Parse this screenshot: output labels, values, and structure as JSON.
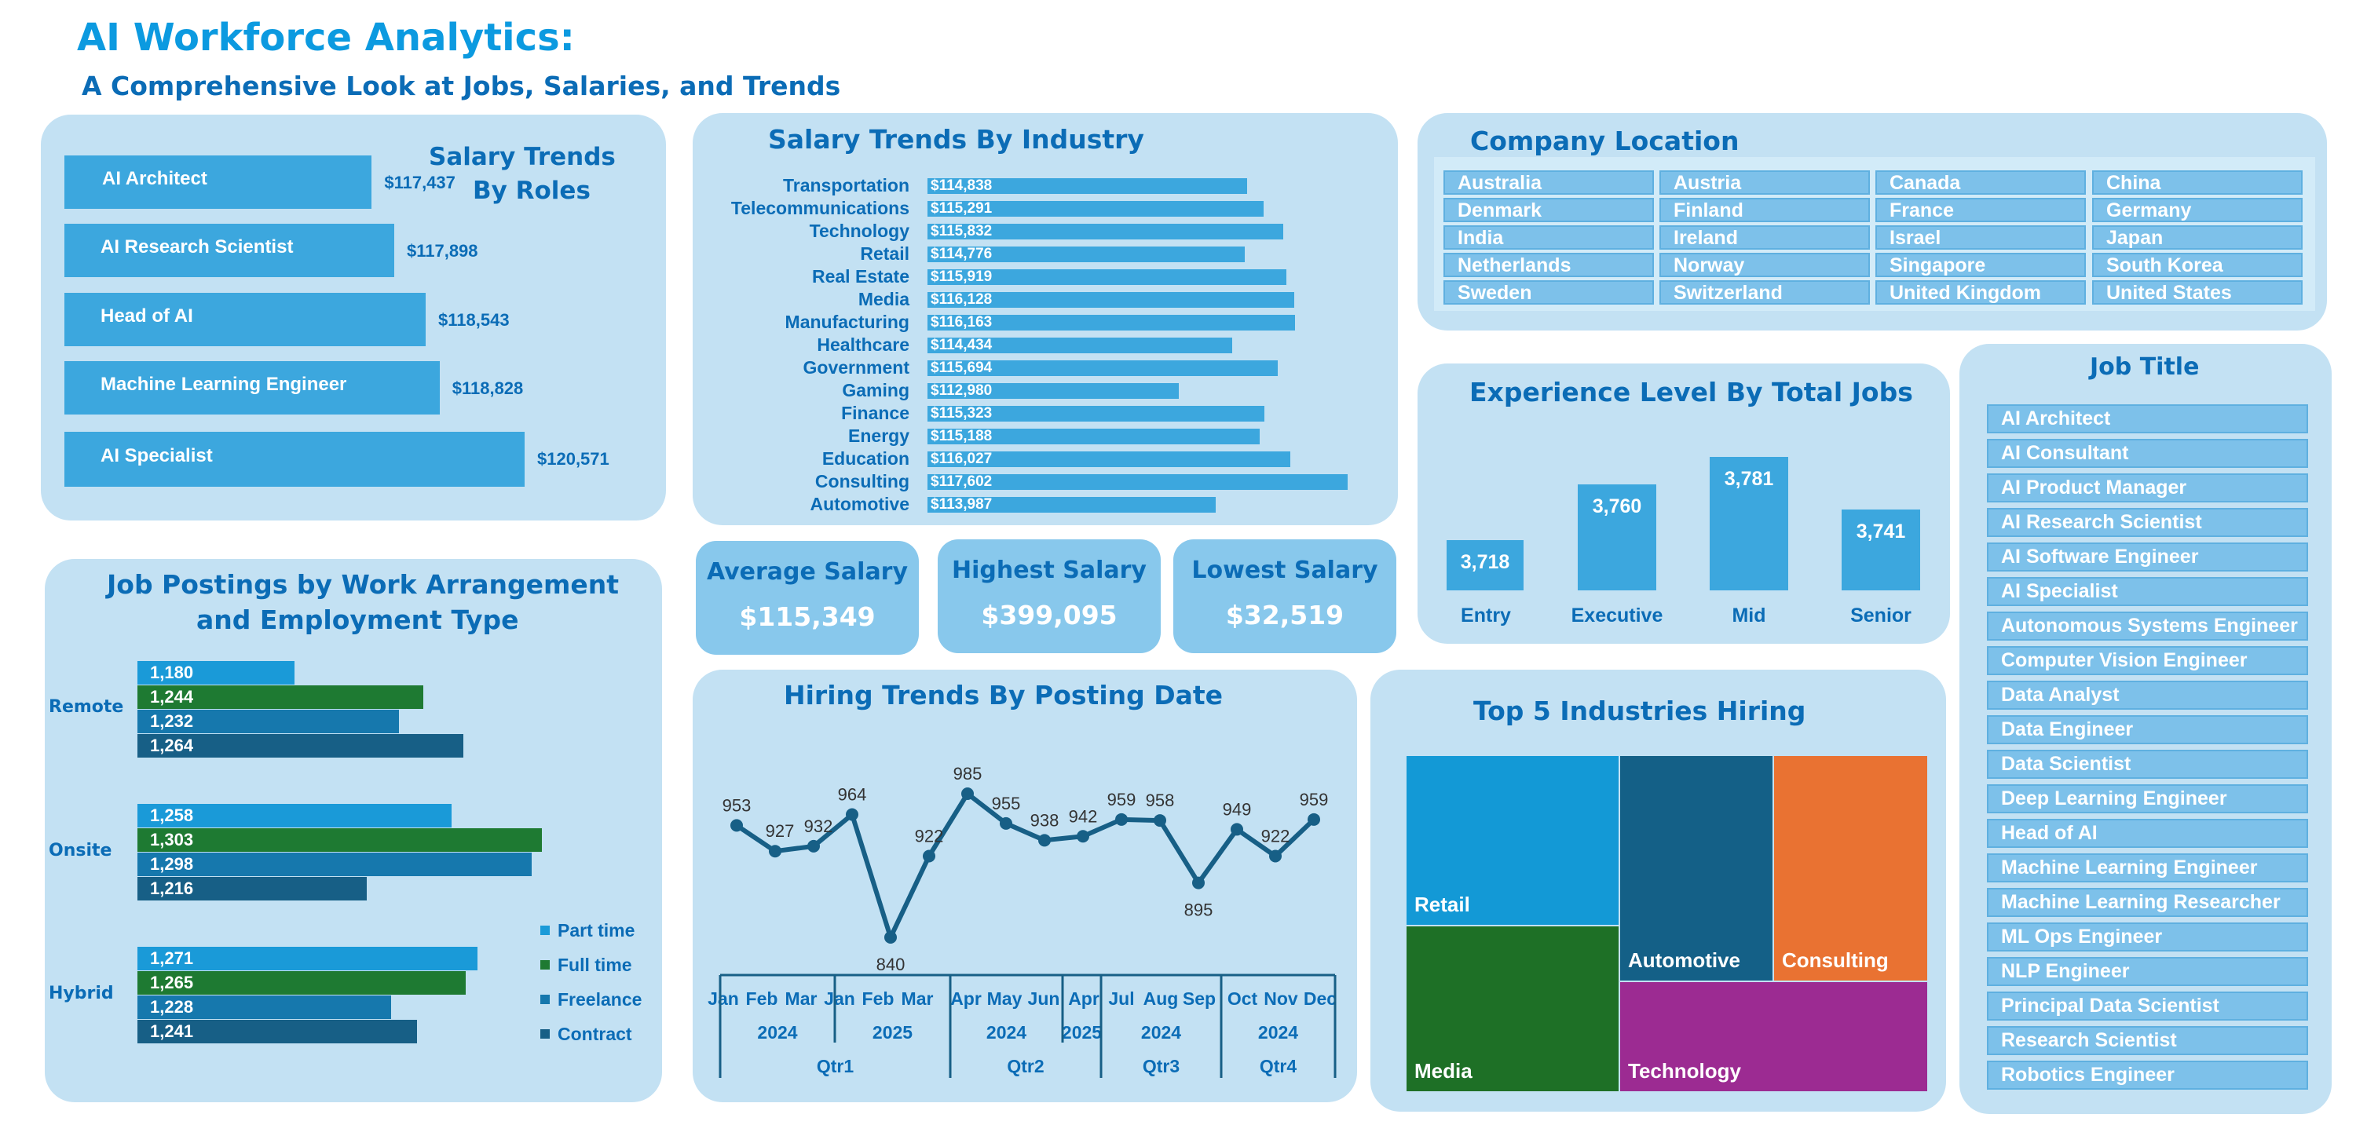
{
  "header": {
    "title": "AI Workforce Analytics:",
    "subtitle": "A Comprehensive Look at Jobs, Salaries, and Trends"
  },
  "salary_by_roles": {
    "title_line1": "Salary Trends",
    "title_line2": "By Roles",
    "items": [
      {
        "label": "AI Architect",
        "value": "$117,437"
      },
      {
        "label": "AI Research Scientist",
        "value": "$117,898"
      },
      {
        "label": "Head of AI",
        "value": "$118,543"
      },
      {
        "label": "Machine Learning Engineer",
        "value": "$118,828"
      },
      {
        "label": "AI Specialist",
        "value": "$120,571"
      }
    ]
  },
  "salary_by_industry": {
    "title": "Salary Trends By Industry",
    "items": [
      {
        "label": "Transportation",
        "value": "$114,838"
      },
      {
        "label": "Telecommunications",
        "value": "$115,291"
      },
      {
        "label": "Technology",
        "value": "$115,832"
      },
      {
        "label": "Retail",
        "value": "$114,776"
      },
      {
        "label": "Real Estate",
        "value": "$115,919"
      },
      {
        "label": "Media",
        "value": "$116,128"
      },
      {
        "label": "Manufacturing",
        "value": "$116,163"
      },
      {
        "label": "Healthcare",
        "value": "$114,434"
      },
      {
        "label": "Government",
        "value": "$115,694"
      },
      {
        "label": "Gaming",
        "value": "$112,980"
      },
      {
        "label": "Finance",
        "value": "$115,323"
      },
      {
        "label": "Energy",
        "value": "$115,188"
      },
      {
        "label": "Education",
        "value": "$116,027"
      },
      {
        "label": "Consulting",
        "value": "$117,602"
      },
      {
        "label": "Automotive",
        "value": "$113,987"
      }
    ]
  },
  "company_location": {
    "title": "Company Location",
    "locations": [
      "Australia",
      "Austria",
      "Canada",
      "China",
      "Denmark",
      "Finland",
      "France",
      "Germany",
      "India",
      "Ireland",
      "Israel",
      "Japan",
      "Netherlands",
      "Norway",
      "Singapore",
      "South Korea",
      "Sweden",
      "Switzerland",
      "United Kingdom",
      "United States"
    ]
  },
  "kpis": {
    "average": {
      "label": "Average Salary",
      "value": "$115,349"
    },
    "highest": {
      "label": "Highest Salary",
      "value": "$399,095"
    },
    "lowest": {
      "label": "Lowest Salary",
      "value": "$32,519"
    }
  },
  "experience": {
    "title": "Experience Level By Total Jobs",
    "items": [
      {
        "label": "Entry",
        "value": 3718,
        "display": "3,718"
      },
      {
        "label": "Executive",
        "value": 3760,
        "display": "3,760"
      },
      {
        "label": "Mid",
        "value": 3781,
        "display": "3,781"
      },
      {
        "label": "Senior",
        "value": 3741,
        "display": "3,741"
      }
    ]
  },
  "job_title": {
    "title": "Job Title",
    "items": [
      "AI Architect",
      "AI Consultant",
      "AI Product Manager",
      "AI Research Scientist",
      "AI Software Engineer",
      "AI Specialist",
      "Autonomous Systems Engineer",
      "Computer Vision Engineer",
      "Data Analyst",
      "Data Engineer",
      "Data Scientist",
      "Deep Learning Engineer",
      "Head of AI",
      "Machine Learning Engineer",
      "Machine Learning Researcher",
      "ML Ops Engineer",
      "NLP Engineer",
      "Principal Data Scientist",
      "Research Scientist",
      "Robotics Engineer"
    ]
  },
  "work_arrangement": {
    "title_line1": "Job Postings by Work Arrangement",
    "title_line2": "and Employment Type",
    "groups": [
      {
        "label": "Remote",
        "values": [
          1180,
          1244,
          1232,
          1264
        ],
        "display": [
          "1,180",
          "1,244",
          "1,232",
          "1,264"
        ]
      },
      {
        "label": "Onsite",
        "values": [
          1258,
          1303,
          1298,
          1216
        ],
        "display": [
          "1,258",
          "1,303",
          "1,298",
          "1,216"
        ]
      },
      {
        "label": "Hybrid",
        "values": [
          1271,
          1265,
          1228,
          1241
        ],
        "display": [
          "1,271",
          "1,265",
          "1,228",
          "1,241"
        ]
      }
    ],
    "legend": [
      {
        "label": "Part time",
        "color": "#1a9ad8"
      },
      {
        "label": "Full time",
        "color": "#1e7a32"
      },
      {
        "label": "Freelance",
        "color": "#1678ad"
      },
      {
        "label": "Contract",
        "color": "#175f86"
      }
    ]
  },
  "hiring_trends": {
    "title": "Hiring Trends By Posting Date",
    "points": [
      953,
      927,
      932,
      964,
      840,
      922,
      985,
      955,
      938,
      942,
      959,
      958,
      895,
      949,
      922,
      959
    ],
    "months": [
      "Jan",
      "Feb",
      "Mar",
      "Jan",
      "Feb",
      "Mar",
      "Apr",
      "May",
      "Jun",
      "Apr",
      "Jul",
      "Aug",
      "Sep",
      "Oct",
      "Nov",
      "Dec"
    ],
    "years": [
      "2024",
      "2025",
      "2024",
      "2025",
      "2024",
      "2024"
    ],
    "quarters": [
      "Qtr1",
      "Qtr2",
      "Qtr3",
      "Qtr4"
    ]
  },
  "top_industries": {
    "title": "Top 5 Industries Hiring",
    "items": [
      {
        "label": "Retail",
        "color": "#1399d6"
      },
      {
        "label": "Automotive",
        "color": "#146087"
      },
      {
        "label": "Consulting",
        "color": "#e97232"
      },
      {
        "label": "Media",
        "color": "#1e7026"
      },
      {
        "label": "Technology",
        "color": "#9c2b92"
      }
    ]
  },
  "chart_data": [
    {
      "type": "bar",
      "title": "Salary Trends By Roles",
      "categories": [
        "AI Architect",
        "AI Research Scientist",
        "Head of AI",
        "Machine Learning Engineer",
        "AI Specialist"
      ],
      "values": [
        117437,
        117898,
        118543,
        118828,
        120571
      ]
    },
    {
      "type": "bar",
      "title": "Salary Trends By Industry",
      "categories": [
        "Transportation",
        "Telecommunications",
        "Technology",
        "Retail",
        "Real Estate",
        "Media",
        "Manufacturing",
        "Healthcare",
        "Government",
        "Gaming",
        "Finance",
        "Energy",
        "Education",
        "Consulting",
        "Automotive"
      ],
      "values": [
        114838,
        115291,
        115832,
        114776,
        115919,
        116128,
        116163,
        114434,
        115694,
        112980,
        115323,
        115188,
        116027,
        117602,
        113987
      ]
    },
    {
      "type": "bar",
      "title": "Experience Level By Total Jobs",
      "categories": [
        "Entry",
        "Executive",
        "Mid",
        "Senior"
      ],
      "values": [
        3718,
        3760,
        3781,
        3741
      ]
    },
    {
      "type": "bar",
      "title": "Job Postings by Work Arrangement and Employment Type",
      "categories": [
        "Remote",
        "Onsite",
        "Hybrid"
      ],
      "series": [
        {
          "name": "Part time",
          "values": [
            1180,
            1258,
            1271
          ]
        },
        {
          "name": "Full time",
          "values": [
            1244,
            1303,
            1265
          ]
        },
        {
          "name": "Freelance",
          "values": [
            1232,
            1298,
            1228
          ]
        },
        {
          "name": "Contract",
          "values": [
            1264,
            1216,
            1241
          ]
        }
      ]
    },
    {
      "type": "line",
      "title": "Hiring Trends By Posting Date",
      "x": [
        "Jan 2024",
        "Feb 2024",
        "Mar 2024",
        "Jan 2025",
        "Feb 2025",
        "Mar 2025",
        "Apr 2024",
        "May 2024",
        "Jun 2024",
        "Apr 2025",
        "Jul 2024",
        "Aug 2024",
        "Sep 2024",
        "Oct 2024",
        "Nov 2024",
        "Dec 2024"
      ],
      "values": [
        953,
        927,
        932,
        964,
        840,
        922,
        985,
        955,
        938,
        942,
        959,
        958,
        895,
        949,
        922,
        959
      ]
    }
  ]
}
